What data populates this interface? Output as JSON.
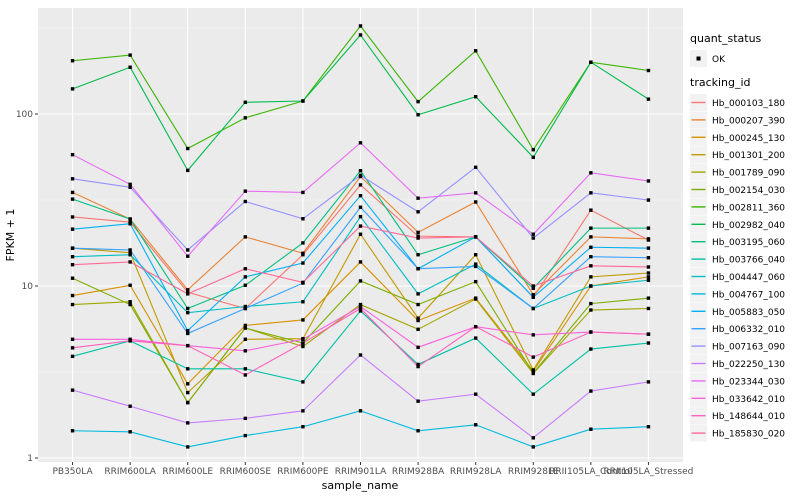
{
  "colors": {
    "panel_bg": "#EBEBEB",
    "grid_major": "#FFFFFF",
    "grid_minor": "#F7F7F7",
    "axis_text": "#4D4D4D",
    "tick_mark": "#333333",
    "legend_key_bg": "#F2F2F2",
    "point": "#000000"
  },
  "legend": {
    "quant_status_title": "quant_status",
    "quant_status_items": [
      "OK"
    ],
    "tracking_title": "tracking_id"
  },
  "chart_data": {
    "type": "line",
    "title": "",
    "xlabel": "sample_name",
    "ylabel": "FPKM + 1",
    "y_scale": "log10",
    "ylim": [
      1,
      430
    ],
    "y_major_ticks": [
      1,
      10,
      100
    ],
    "y_major_tick_labels": [
      "1",
      "10",
      "100"
    ],
    "y_minor_ticks": [
      3.162,
      31.62,
      316.2
    ],
    "grid": "on",
    "legend_position": "right",
    "point_shape": "square",
    "categories": [
      "PB350LA",
      "RRIM600LA",
      "RRIM600LE",
      "RRIM600SE",
      "RRIM600PE",
      "RRIM901LA",
      "RRIM928BA",
      "RRIM928LA",
      "RRIM928LE",
      "RRII105LA_Control",
      "RRII105LA_Stressed"
    ],
    "series": [
      {
        "name": "Hb_000103_180",
        "color": "#F8766D",
        "quant_status": "OK",
        "values": [
          25.2,
          23.5,
          9.2,
          7.4,
          15.2,
          38.7,
          19.5,
          19.3,
          8.6,
          27.6,
          18.5
        ]
      },
      {
        "name": "Hb_000207_390",
        "color": "#EA8331",
        "quant_status": "OK",
        "values": [
          35,
          24.5,
          9.5,
          19.3,
          15.5,
          43.3,
          20.5,
          30.8,
          8.9,
          19.3,
          18.8
        ]
      },
      {
        "name": "Hb_000245_130",
        "color": "#D89000",
        "quant_status": "OK",
        "values": [
          8.8,
          10.1,
          2.7,
          5.9,
          6.35,
          13.8,
          6.3,
          8.5,
          3.2,
          10.0,
          11.3
        ]
      },
      {
        "name": "Hb_001301_200",
        "color": "#C09B00",
        "quant_status": "OK",
        "values": [
          16.6,
          15.6,
          2.4,
          4.9,
          4.94,
          20.0,
          6.5,
          15.2,
          3.25,
          11.3,
          11.9
        ]
      },
      {
        "name": "Hb_001789_090",
        "color": "#A3A500",
        "quant_status": "OK",
        "values": [
          7.8,
          8.1,
          2.1,
          5.7,
          4.45,
          7.8,
          5.6,
          8.4,
          3.1,
          7.25,
          7.4
        ]
      },
      {
        "name": "Hb_002154_030",
        "color": "#7CAE00",
        "quant_status": "OK",
        "values": [
          11.1,
          7.8,
          2.1,
          5.7,
          4.66,
          10.7,
          7.8,
          10.6,
          3.12,
          7.9,
          8.5
        ]
      },
      {
        "name": "Hb_002811_360",
        "color": "#39B600",
        "quant_status": "OK",
        "values": [
          204,
          220,
          63,
          95,
          119,
          325,
          118,
          233,
          62,
          200,
          179
        ]
      },
      {
        "name": "Hb_002982_040",
        "color": "#00BB4E",
        "quant_status": "OK",
        "values": [
          140,
          187,
          47,
          117,
          119,
          288,
          99,
          126,
          56,
          200,
          122
        ]
      },
      {
        "name": "Hb_003195_060",
        "color": "#00BF7D",
        "quant_status": "OK",
        "values": [
          32,
          24.5,
          7.4,
          10.1,
          17.8,
          46.8,
          15.2,
          19.3,
          9.7,
          21.7,
          21.7
        ]
      },
      {
        "name": "Hb_003766_040",
        "color": "#00C1A3",
        "quant_status": "OK",
        "values": [
          3.9,
          4.8,
          3.3,
          3.3,
          2.77,
          7.16,
          3.5,
          4.98,
          2.35,
          4.3,
          4.66
        ]
      },
      {
        "name": "Hb_004447_060",
        "color": "#00BFC4",
        "quant_status": "OK",
        "values": [
          14.8,
          15.2,
          7.0,
          7.6,
          8.1,
          25.3,
          9.0,
          13.4,
          7.4,
          10.0,
          10.8
        ]
      },
      {
        "name": "Hb_004767_100",
        "color": "#00BADE",
        "quant_status": "OK",
        "values": [
          1.44,
          1.42,
          1.16,
          1.35,
          1.52,
          1.88,
          1.44,
          1.56,
          1.16,
          1.47,
          1.52
        ]
      },
      {
        "name": "Hb_005883_050",
        "color": "#00B0F6",
        "quant_status": "OK",
        "values": [
          21.4,
          23,
          5.5,
          11.3,
          13.6,
          33.5,
          12.6,
          19.3,
          8.6,
          16.8,
          16.6
        ]
      },
      {
        "name": "Hb_006332_010",
        "color": "#35A2FF",
        "quant_status": "OK",
        "values": [
          16.6,
          16.2,
          5.3,
          7.4,
          10.4,
          28.7,
          12.6,
          13.0,
          7.4,
          14.8,
          14.6
        ]
      },
      {
        "name": "Hb_007163_090",
        "color": "#9590FF",
        "quant_status": "OK",
        "values": [
          42,
          37.5,
          16.2,
          31,
          24.6,
          44,
          27,
          49,
          19,
          34.8,
          31.6
        ]
      },
      {
        "name": "Hb_022250_130",
        "color": "#C77CFF",
        "quant_status": "OK",
        "values": [
          2.48,
          2.0,
          1.6,
          1.7,
          1.88,
          3.97,
          2.14,
          2.35,
          1.31,
          2.45,
          2.77
        ]
      },
      {
        "name": "Hb_023344_030",
        "color": "#E76BF3",
        "quant_status": "OK",
        "values": [
          58,
          39,
          14.9,
          35.6,
          35,
          68,
          32.4,
          34.8,
          20,
          45.5,
          40.8
        ]
      },
      {
        "name": "Hb_033642_010",
        "color": "#FA62DB",
        "quant_status": "OK",
        "values": [
          4.9,
          4.9,
          4.5,
          4.2,
          4.9,
          7.6,
          4.4,
          5.8,
          5.2,
          5.4,
          5.25
        ]
      },
      {
        "name": "Hb_148644_010",
        "color": "#FF62BC",
        "quant_status": "OK",
        "values": [
          4.37,
          4.8,
          4.5,
          3.04,
          4.66,
          7.4,
          3.4,
          5.8,
          3.86,
          5.4,
          5.25
        ]
      },
      {
        "name": "Hb_185830_020",
        "color": "#FF6A98",
        "quant_status": "OK",
        "values": [
          13.3,
          13.8,
          9.0,
          12.6,
          10.5,
          22.3,
          19.0,
          19.3,
          10.0,
          13.1,
          12.9
        ]
      }
    ]
  }
}
